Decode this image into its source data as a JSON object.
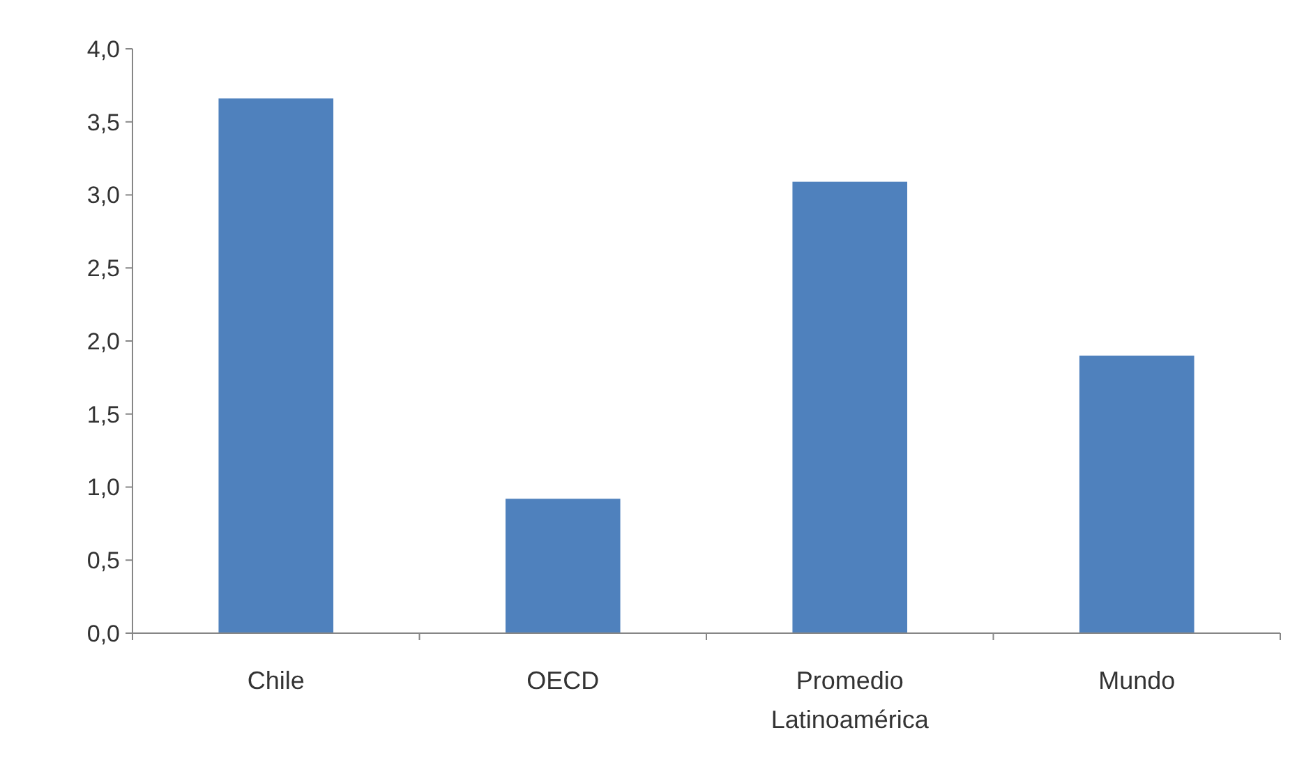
{
  "chart_data": {
    "type": "bar",
    "categories": [
      "Chile",
      "OECD",
      "Promedio Latinoamérica",
      "Mundo"
    ],
    "values": [
      3.66,
      0.92,
      3.09,
      1.9
    ],
    "color": "#4f81bd",
    "ylim": [
      0,
      4
    ],
    "yticks": [
      {
        "value": 0,
        "label": "0,0"
      },
      {
        "value": 0.5,
        "label": "0,5"
      },
      {
        "value": 1,
        "label": "1,0"
      },
      {
        "value": 1.5,
        "label": "1,5"
      },
      {
        "value": 2,
        "label": "2,0"
      },
      {
        "value": 2.5,
        "label": "2,5"
      },
      {
        "value": 3,
        "label": "3,0"
      },
      {
        "value": 3.5,
        "label": "3,5"
      },
      {
        "value": 4,
        "label": "4,0"
      }
    ],
    "grid": false
  }
}
